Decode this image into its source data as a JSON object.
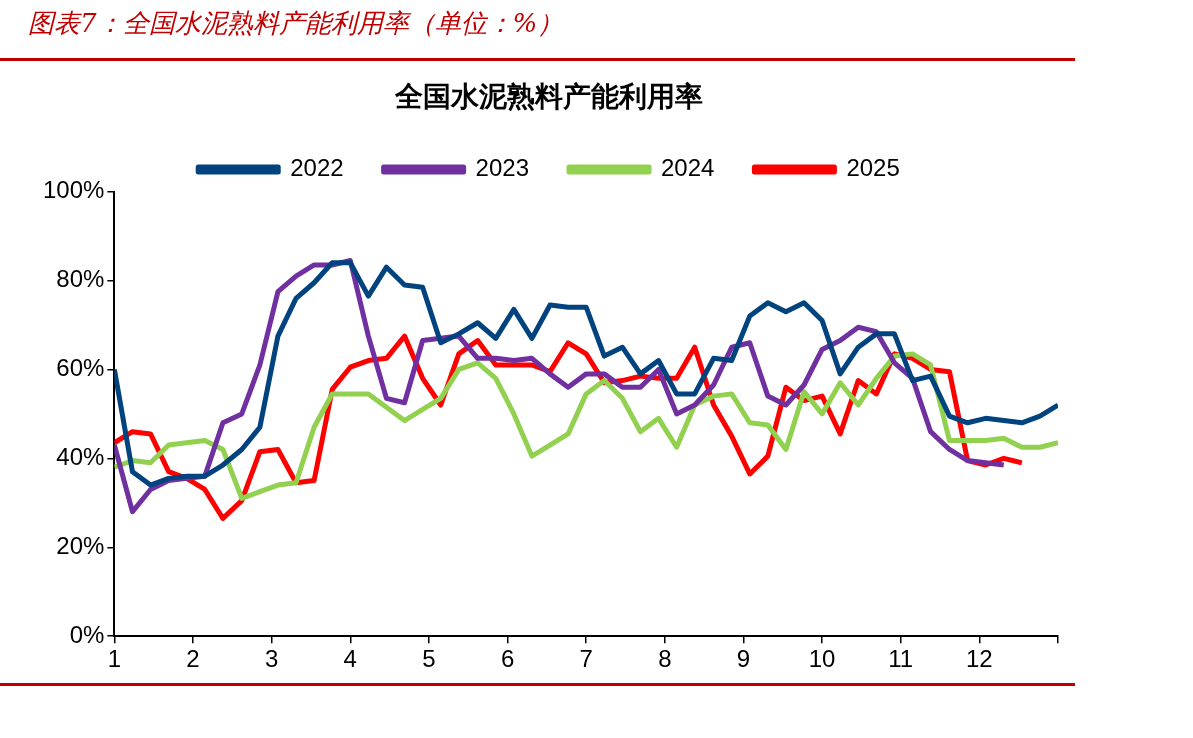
{
  "chart_data": {
    "type": "line",
    "title": "全国水泥熟料产能利用率",
    "annotations": [
      "图表7：全国水泥熟料产能利用率（单位：%）"
    ],
    "x": [
      1,
      1.23,
      1.46,
      1.69,
      1.92,
      2.15,
      2.38,
      2.62,
      2.85,
      3.08,
      3.31,
      3.54,
      3.77,
      4,
      4.23,
      4.46,
      4.69,
      4.92,
      5.15,
      5.38,
      5.62,
      5.85,
      6.08,
      6.31,
      6.54,
      6.77,
      7,
      7.23,
      7.46,
      7.69,
      7.92,
      8.15,
      8.38,
      8.62,
      8.85,
      9.08,
      9.31,
      9.54,
      9.77,
      10,
      10.23,
      10.46,
      10.69,
      10.92,
      11.15,
      11.38,
      11.62,
      11.85,
      12.08,
      12.31,
      12.54,
      12.77,
      13
    ],
    "series": [
      {
        "name": "2022",
        "color": "#00437f",
        "values": [
          60,
          37,
          34,
          35.5,
          36,
          36,
          38.5,
          42,
          47,
          67.5,
          76,
          79.5,
          84,
          84,
          76.5,
          83,
          79,
          78.5,
          66,
          68,
          70.5,
          67,
          73.5,
          67,
          74.5,
          74,
          74,
          63,
          65,
          59,
          62,
          54.5,
          54.5,
          62.5,
          62,
          72,
          75,
          73,
          75,
          71,
          59,
          65,
          68,
          68,
          57.5,
          58.5,
          49.5,
          48,
          49,
          48.5,
          48,
          49.5,
          52
        ]
      },
      {
        "name": "2023",
        "color": "#7030a0",
        "values": [
          43,
          28,
          33,
          35,
          35.5,
          36,
          48,
          50,
          61,
          77.5,
          81,
          83.5,
          83.5,
          84.5,
          67.5,
          53.5,
          52.5,
          66.5,
          67,
          67.5,
          62.5,
          62.5,
          62,
          62.5,
          59,
          56,
          59,
          59,
          56,
          56,
          60,
          50,
          52,
          56.5,
          65,
          66,
          54,
          52,
          56.5,
          64.5,
          66.5,
          69.5,
          68.5,
          61.5,
          58,
          46,
          42,
          39.5,
          39,
          38.5,
          null,
          null,
          null
        ]
      },
      {
        "name": "2024",
        "color": "#92d050",
        "values": [
          38,
          39.5,
          39,
          43,
          43.5,
          44,
          42,
          31,
          32.5,
          34,
          34.5,
          47,
          54.5,
          54.5,
          54.5,
          51.5,
          48.5,
          51,
          53.5,
          60,
          61.5,
          58,
          50,
          40.5,
          43,
          45.5,
          54.5,
          57.5,
          53.5,
          46,
          49,
          42.5,
          52,
          54,
          54.5,
          48,
          47.5,
          42,
          55,
          50,
          57,
          52,
          58,
          63,
          63.5,
          61,
          44,
          44,
          44,
          44.5,
          42.5,
          42.5,
          43.5
        ]
      },
      {
        "name": "2025",
        "color": "#ff0000",
        "values": [
          43.5,
          46,
          45.5,
          37,
          35.5,
          33,
          26.5,
          30.5,
          41.5,
          42,
          34.5,
          35,
          55.5,
          60.5,
          62,
          62.5,
          67.5,
          58,
          52,
          63.5,
          66.5,
          61,
          61,
          61,
          59.5,
          66,
          63.5,
          57,
          57.5,
          58.5,
          58,
          58,
          65,
          52,
          45,
          36.5,
          40.5,
          56,
          53,
          54,
          45.5,
          57.5,
          54.5,
          63.5,
          62.5,
          60,
          59.5,
          39.5,
          38.5,
          40,
          39,
          null,
          null
        ]
      }
    ],
    "xlim": [
      1,
      13
    ],
    "xticks": [
      1,
      2,
      3,
      4,
      5,
      6,
      7,
      8,
      9,
      10,
      11,
      12,
      {
        "value": 13,
        "label": null
      }
    ],
    "ylim": [
      0,
      100
    ],
    "yticks": [
      {
        "value": 0,
        "label": "0%"
      },
      {
        "value": 20,
        "label": "20%"
      },
      {
        "value": 40,
        "label": "40%"
      },
      {
        "value": 60,
        "label": "60%"
      },
      {
        "value": 80,
        "label": "80%"
      },
      {
        "value": 100,
        "label": "100%"
      }
    ],
    "legend": "top",
    "grid": false,
    "marker": "none",
    "line_style": "solid"
  }
}
